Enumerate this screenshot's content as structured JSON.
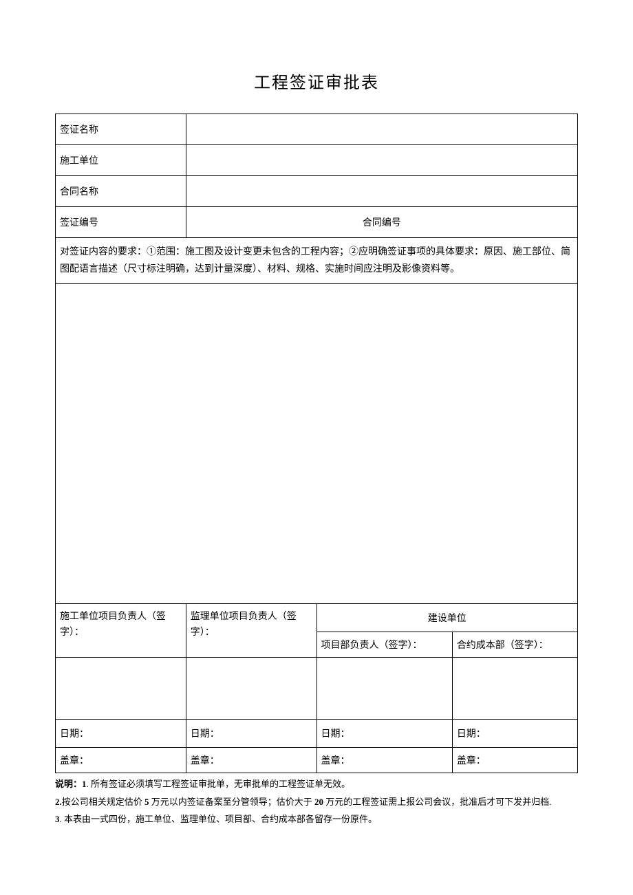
{
  "title": "工程签证审批表",
  "fields": {
    "visaName": "签证名称",
    "constructionUnit": "施工单位",
    "contractName": "合同名称",
    "visaNumber": "签证编号",
    "contractNumber": "合同编号"
  },
  "requirement": "对签证内容的要求：①范围：施工图及设计变更未包含的工程内容；②应明确签证事项的具体要求：原因、施工部位、简图配语言描述（尺寸标注明确，达到计量深度）、材料、规格、实施时间应注明及影像资料等。",
  "signatures": {
    "constructionMgr": "施工单位项目负责人（签字）：",
    "supervisionMgr": "监理单位项目负责人（签字）：",
    "ownerUnit": "建设单位",
    "projectMgr": "项目部负责人（签字）：",
    "contractCost": "合约成本部（签字）：",
    "dateLabel": "日期：",
    "stampLabel": "盖章："
  },
  "notes": {
    "prefix": "说明：",
    "n1_num": "1",
    "n1_text": ". 所有签证必须填写工程签证审批单，无审批单的工程签证单无效。",
    "n2_num": "2.",
    "n2_text_a": "按公司相关规定估价 ",
    "n2_text_b": "5",
    "n2_text_c": " 万元以内签证备案至分管领导；估价大于 ",
    "n2_text_d": "20",
    "n2_text_e": " 万元的工程签证需上报公司会议，批准后才可下发并归档.",
    "n3_num": "3",
    "n3_text": ". 本表由一式四份，施工单位、监理单位、项目部、合约成本部各留存一份原件。"
  },
  "style": {
    "pageWidth": 920,
    "pageHeight": 1301,
    "bgColor": "#ffffff",
    "borderColor": "#000000",
    "textColor": "#000000",
    "titleFontSize": 24,
    "bodyFontSize": 14,
    "notesFontSize": 13,
    "labelColWidth": 110
  }
}
